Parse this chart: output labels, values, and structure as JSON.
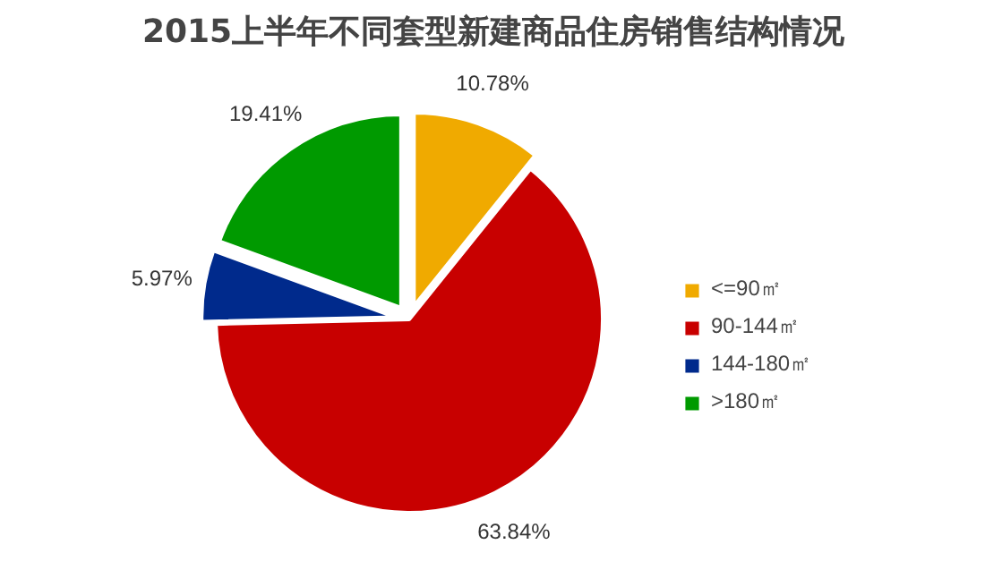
{
  "chart_data": {
    "type": "pie",
    "title": "2015上半年不同套型新建商品住房销售结构情况",
    "categories": [
      "<=90㎡",
      "90-144㎡",
      "144-180㎡",
      ">180㎡"
    ],
    "values": [
      10.78,
      63.84,
      5.97,
      19.41
    ],
    "colors": [
      "#f0aa00",
      "#c80000",
      "#002a8c",
      "#009a00"
    ],
    "value_labels": [
      "10.78%",
      "63.84%",
      "5.97%",
      "19.41%"
    ],
    "legend": "right"
  }
}
